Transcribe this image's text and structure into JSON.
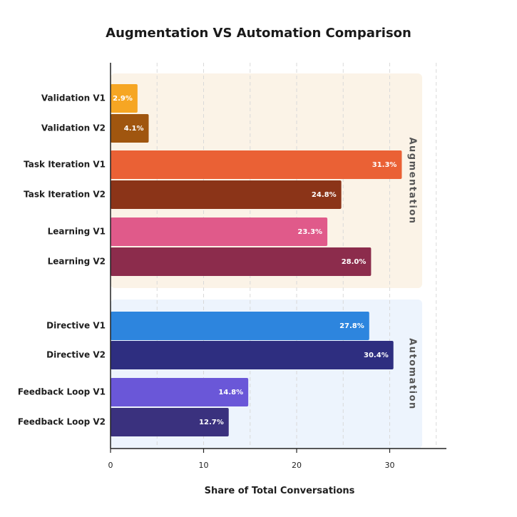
{
  "title": "Augmentation VS Automation Comparison",
  "chart_data": {
    "type": "bar",
    "orientation": "horizontal",
    "title": "Augmentation VS Automation Comparison",
    "xlabel": "Share of Total Conversations",
    "ylabel": "",
    "xlim": [
      0,
      36
    ],
    "xticks": [
      0,
      10,
      20,
      30
    ],
    "grid": "vertical dashed",
    "value_suffix": "%",
    "groups": [
      {
        "name": "Augmentation",
        "background": "#fbf3e7",
        "bars": [
          {
            "label": "Validation V1",
            "value": 2.9,
            "color": "#f6a623"
          },
          {
            "label": "Validation V2",
            "value": 4.1,
            "color": "#a0560f"
          },
          {
            "label": "Task Iteration V1",
            "value": 31.3,
            "color": "#ea6135"
          },
          {
            "label": "Task Iteration V2",
            "value": 24.8,
            "color": "#8b3418"
          },
          {
            "label": "Learning V1",
            "value": 23.3,
            "color": "#e05a8a"
          },
          {
            "label": "Learning V2",
            "value": 28.0,
            "color": "#8c2c4c"
          }
        ]
      },
      {
        "name": "Automation",
        "background": "#edf4fd",
        "bars": [
          {
            "label": "Directive V1",
            "value": 27.8,
            "color": "#2d85de"
          },
          {
            "label": "Directive V2",
            "value": 30.4,
            "color": "#2e2e80"
          },
          {
            "label": "Feedback Loop V1",
            "value": 14.8,
            "color": "#6a57d8"
          },
          {
            "label": "Feedback Loop V2",
            "value": 12.7,
            "color": "#3a317e"
          }
        ]
      }
    ]
  }
}
